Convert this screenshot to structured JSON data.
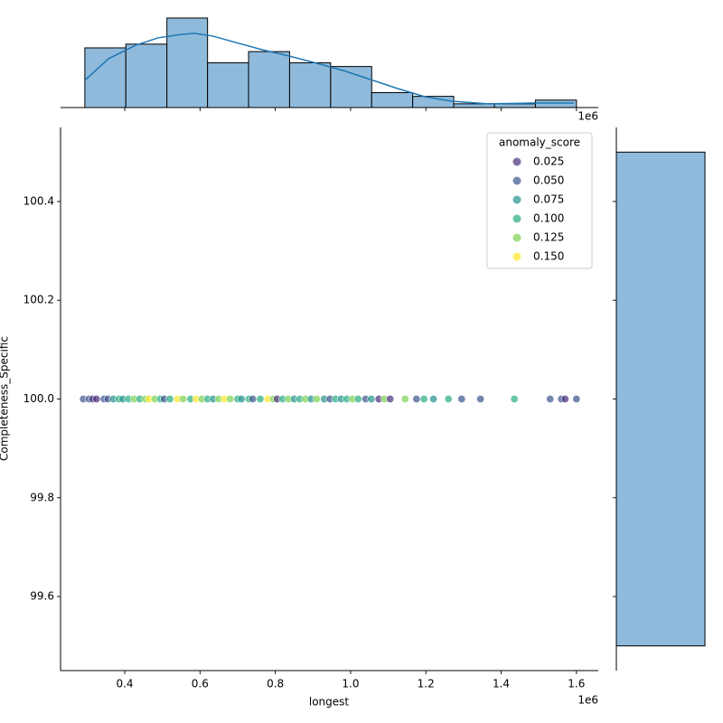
{
  "chart_data": {
    "type": "joint",
    "xlabel": "longest",
    "ylabel": "Completeness_Specific",
    "x_offset_label": "1e6",
    "xlim": [
      229500,
      1658000
    ],
    "xticks": [
      {
        "value": 400000,
        "label": "0.4"
      },
      {
        "value": 600000,
        "label": "0.6"
      },
      {
        "value": 800000,
        "label": "0.8"
      },
      {
        "value": 1000000,
        "label": "1.0"
      },
      {
        "value": 1200000,
        "label": "1.2"
      },
      {
        "value": 1400000,
        "label": "1.4"
      },
      {
        "value": 1600000,
        "label": "1.6"
      }
    ],
    "ylim": [
      99.45,
      100.55
    ],
    "yticks": [
      99.6,
      99.8,
      {
        "value": 100.0,
        "label": "100.0"
      },
      100.2,
      100.4
    ],
    "legend": {
      "title": "anomaly_score",
      "position": "upper right",
      "entries": [
        {
          "value": 0.025,
          "label": "0.025",
          "color": "#472d7b"
        },
        {
          "value": 0.05,
          "label": "0.050",
          "color": "#3b528b"
        },
        {
          "value": 0.075,
          "label": "0.075",
          "color": "#21918c"
        },
        {
          "value": 0.1,
          "label": "0.100",
          "color": "#27ad81"
        },
        {
          "value": 0.125,
          "label": "0.125",
          "color": "#7ad151"
        },
        {
          "value": 0.15,
          "label": "0.150",
          "color": "#fde725"
        }
      ]
    },
    "scatter": {
      "x": [
        290000,
        305000,
        315000,
        325000,
        345000,
        355000,
        370000,
        385000,
        395000,
        410000,
        425000,
        440000,
        455000,
        465000,
        480000,
        495000,
        505000,
        520000,
        540000,
        555000,
        575000,
        590000,
        605000,
        620000,
        635000,
        650000,
        665000,
        680000,
        700000,
        710000,
        730000,
        740000,
        760000,
        780000,
        795000,
        805000,
        820000,
        835000,
        850000,
        865000,
        880000,
        895000,
        910000,
        930000,
        945000,
        960000,
        975000,
        990000,
        1005000,
        1020000,
        1040000,
        1055000,
        1075000,
        1090000,
        1105000,
        1145000,
        1175000,
        1195000,
        1220000,
        1260000,
        1295000,
        1345000,
        1435000,
        1530000,
        1560000,
        1570000,
        1600000
      ],
      "y": [
        100,
        100,
        100,
        100,
        100,
        100,
        100,
        100,
        100,
        100,
        100,
        100,
        100,
        100,
        100,
        100,
        100,
        100,
        100,
        100,
        100,
        100,
        100,
        100,
        100,
        100,
        100,
        100,
        100,
        100,
        100,
        100,
        100,
        100,
        100,
        100,
        100,
        100,
        100,
        100,
        100,
        100,
        100,
        100,
        100,
        100,
        100,
        100,
        100,
        100,
        100,
        100,
        100,
        100,
        100,
        100,
        100,
        100,
        100,
        100,
        100,
        100,
        100,
        100,
        100,
        100,
        100
      ],
      "hue": [
        0.05,
        0.05,
        0.025,
        0.025,
        0.05,
        0.05,
        0.075,
        0.1,
        0.075,
        0.1,
        0.125,
        0.1,
        0.125,
        0.15,
        0.125,
        0.1,
        0.05,
        0.1,
        0.15,
        0.125,
        0.1,
        0.15,
        0.125,
        0.1,
        0.075,
        0.125,
        0.15,
        0.125,
        0.1,
        0.075,
        0.1,
        0.05,
        0.1,
        0.15,
        0.125,
        0.025,
        0.1,
        0.125,
        0.075,
        0.1,
        0.125,
        0.075,
        0.125,
        0.075,
        0.05,
        0.1,
        0.075,
        0.1,
        0.125,
        0.1,
        0.05,
        0.075,
        0.025,
        0.125,
        0.025,
        0.125,
        0.05,
        0.1,
        0.075,
        0.1,
        0.05,
        0.05,
        0.1,
        0.05,
        0.05,
        0.025,
        0.05
      ]
    },
    "top_hist": {
      "color": "#8fbadb",
      "bins": [
        294000,
        403000,
        512000,
        620000,
        729000,
        838000,
        947000,
        1056000,
        1165000,
        1274000,
        1382000,
        1491000,
        1600000
      ],
      "counts": [
        16,
        17,
        24,
        12,
        15,
        12,
        11,
        4,
        3,
        1,
        1,
        2
      ],
      "ylim": [
        0,
        25.2
      ],
      "kde": {
        "color": "#1f77b4",
        "x": [
          294000,
          357000,
          429000,
          489000,
          549000,
          585000,
          633000,
          693000,
          765000,
          837000,
          909000,
          981000,
          1053000,
          1125000,
          1197000,
          1269000,
          1365000,
          1485000,
          1593000
        ],
        "y": [
          7.3,
          13.1,
          16.7,
          18.7,
          19.6,
          19.9,
          19.2,
          17.5,
          15.5,
          13.8,
          11.9,
          9.9,
          7.5,
          5.1,
          2.9,
          1.7,
          1.0,
          1.2,
          1.2
        ]
      }
    },
    "right_hist": {
      "color": "#8fbadb",
      "bins": [
        99.5,
        100.5
      ],
      "counts": [
        118
      ],
      "xlim": [
        0,
        124
      ]
    }
  }
}
